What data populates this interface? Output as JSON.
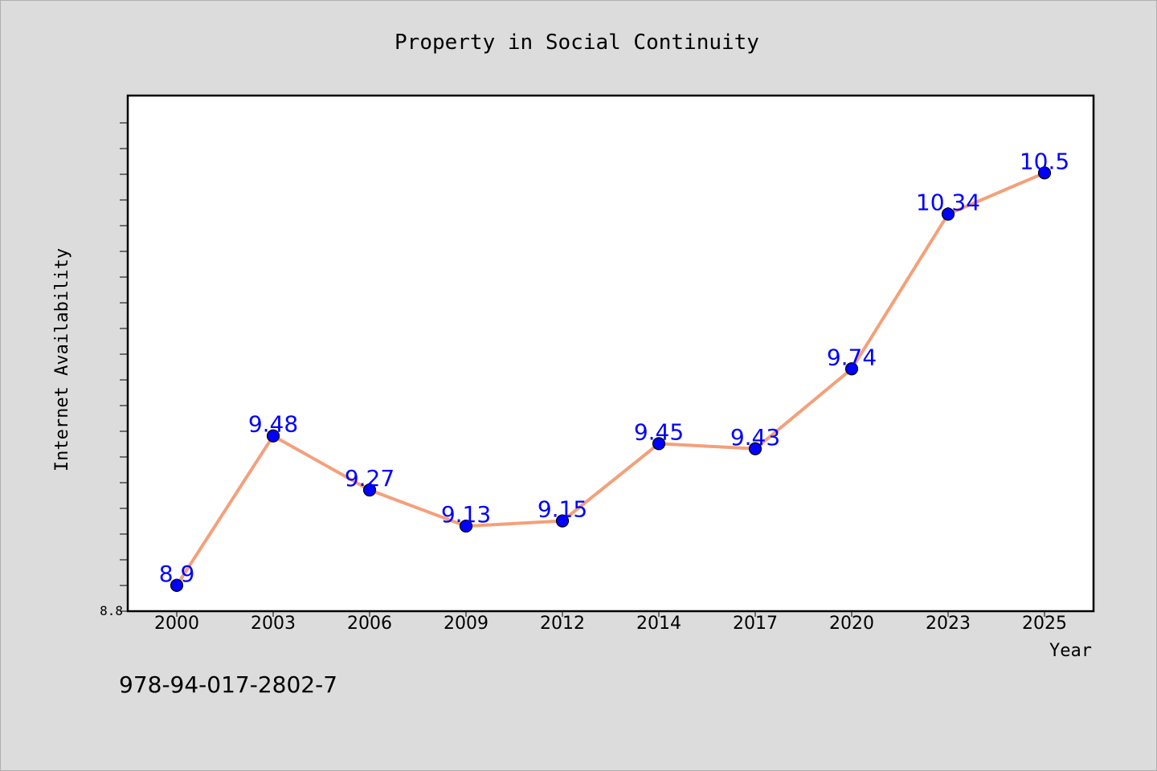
{
  "chart_data": {
    "type": "line",
    "title": "Property in Social Continuity",
    "xlabel": "Year",
    "ylabel": "Internet Availability",
    "categories": [
      "2000",
      "2003",
      "2006",
      "2009",
      "2012",
      "2014",
      "2017",
      "2020",
      "2023",
      "2025"
    ],
    "series": [
      {
        "values": [
          8.9,
          9.48,
          9.27,
          9.13,
          9.15,
          9.45,
          9.43,
          9.74,
          10.34,
          10.5
        ]
      }
    ],
    "data_labels": [
      "8.9",
      "9.48",
      "9.27",
      "9.13",
      "9.15",
      "9.45",
      "9.43",
      "9.74",
      "10.34",
      "10.5"
    ],
    "ytick_label": "8.8",
    "ylim": [
      8.8,
      10.8
    ],
    "grid": false,
    "legend": "none",
    "colors": {
      "line": "#f4a07a",
      "marker": "#0000ff",
      "data_label": "#0000ff",
      "plot_bg": "#ffffff",
      "page_bg": "#dcdcdc"
    }
  },
  "footer": {
    "isbn": "978-94-017-2802-7"
  }
}
